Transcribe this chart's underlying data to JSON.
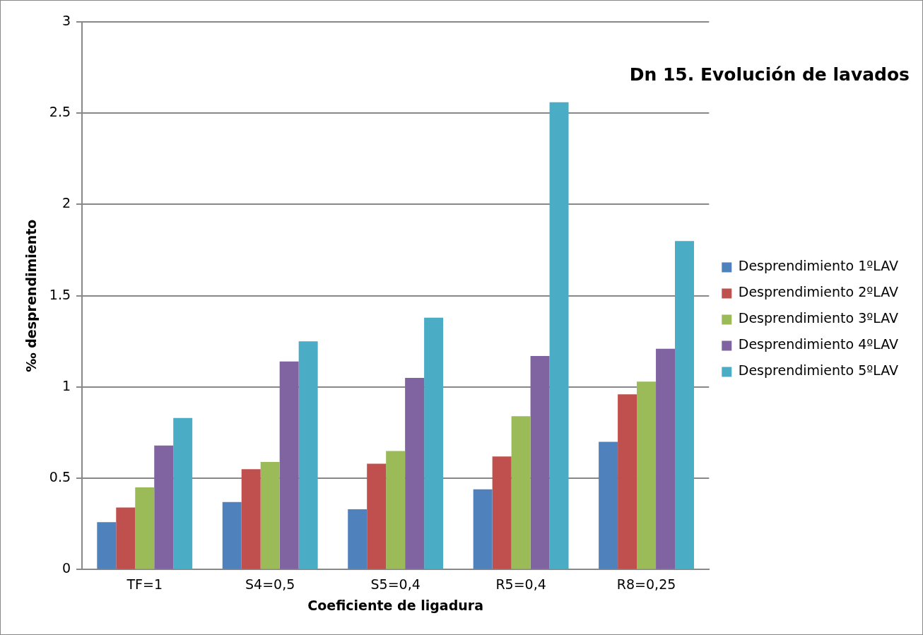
{
  "chart_data": {
    "type": "bar",
    "title": "Dn 15. Evolución de lavados",
    "xlabel": "Coeficiente de ligadura",
    "ylabel": "‰ desprendimiento",
    "categories": [
      "TF=1",
      "S4=0,5",
      "S5=0,4",
      "R5=0,4",
      "R8=0,25"
    ],
    "series": [
      {
        "name": "Desprendimiento 1ºLAV",
        "color": "#4f81bd",
        "values": [
          0.26,
          0.37,
          0.33,
          0.44,
          0.7
        ]
      },
      {
        "name": "Desprendimiento 2ºLAV",
        "color": "#c0504d",
        "values": [
          0.34,
          0.55,
          0.58,
          0.62,
          0.96
        ]
      },
      {
        "name": "Desprendimiento 3ºLAV",
        "color": "#9bbb59",
        "values": [
          0.45,
          0.59,
          0.65,
          0.84,
          1.03
        ]
      },
      {
        "name": "Desprendimiento 4ºLAV",
        "color": "#8064a2",
        "values": [
          0.68,
          1.14,
          1.05,
          1.17,
          1.21
        ]
      },
      {
        "name": "Desprendimiento 5ºLAV",
        "color": "#4bacc6",
        "values": [
          0.83,
          1.25,
          1.38,
          2.56,
          1.8
        ]
      }
    ],
    "ylim": [
      0,
      3
    ],
    "yticks": [
      0,
      0.5,
      1,
      1.5,
      2,
      2.5,
      3
    ],
    "grid": "y",
    "legend": "right"
  }
}
